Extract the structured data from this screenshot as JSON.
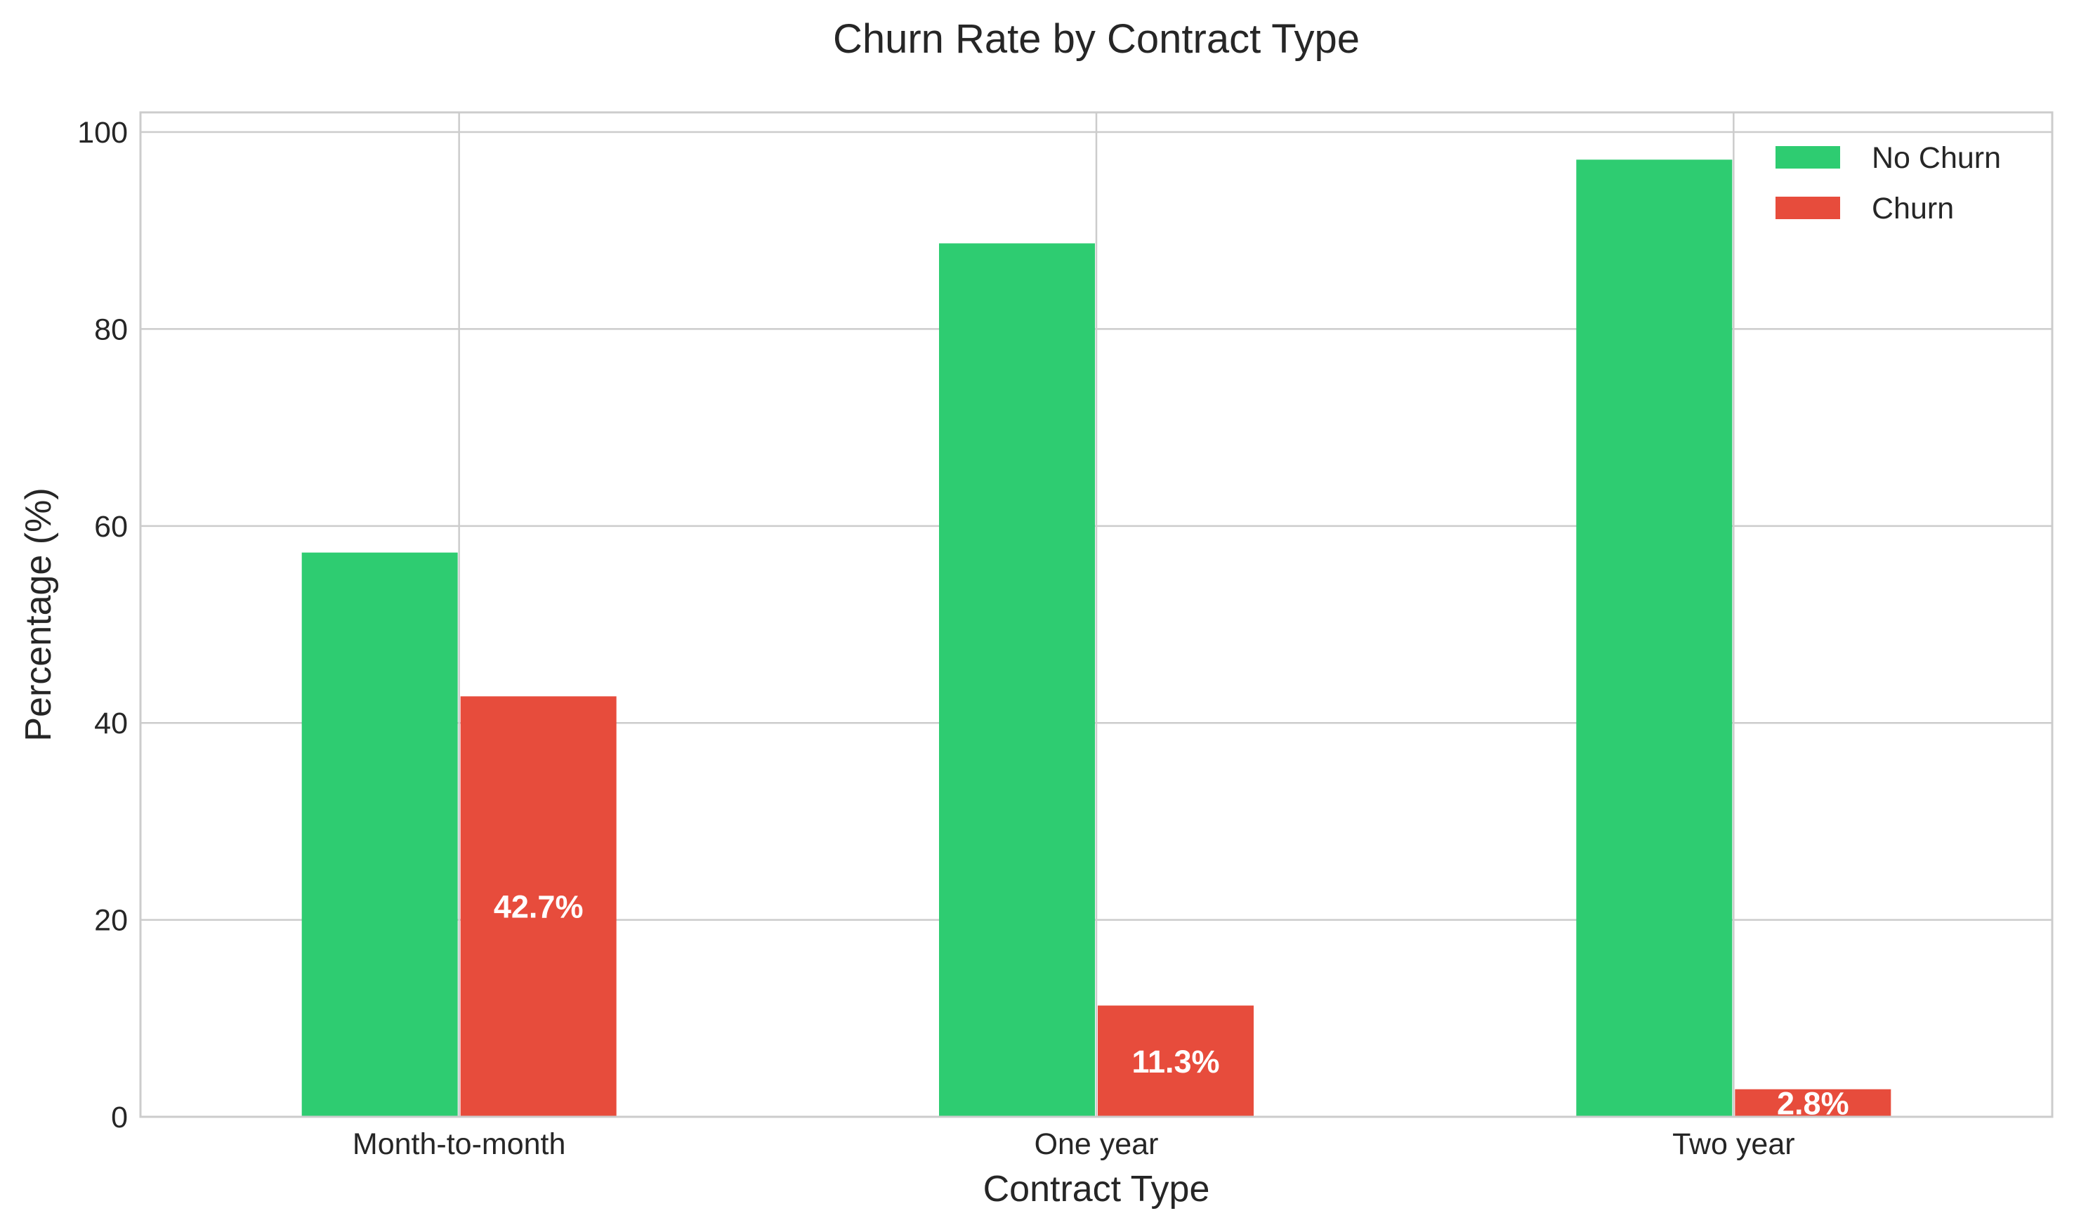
{
  "chart_data": {
    "type": "bar",
    "title": "Churn Rate by Contract Type",
    "xlabel": "Contract Type",
    "ylabel": "Percentage (%)",
    "categories": [
      "Month-to-month",
      "One year",
      "Two year"
    ],
    "series": [
      {
        "name": "No Churn",
        "values": [
          57.3,
          88.7,
          97.2
        ],
        "color": "#2ecc71"
      },
      {
        "name": "Churn",
        "values": [
          42.7,
          11.3,
          2.8
        ],
        "color": "#e74c3c"
      }
    ],
    "data_labels": [
      "42.7%",
      "11.3%",
      "2.8%"
    ],
    "ylim": [
      0,
      102
    ],
    "yticks": [
      0,
      20,
      40,
      60,
      80,
      100
    ],
    "grid": true,
    "legend_position": "top-right"
  }
}
